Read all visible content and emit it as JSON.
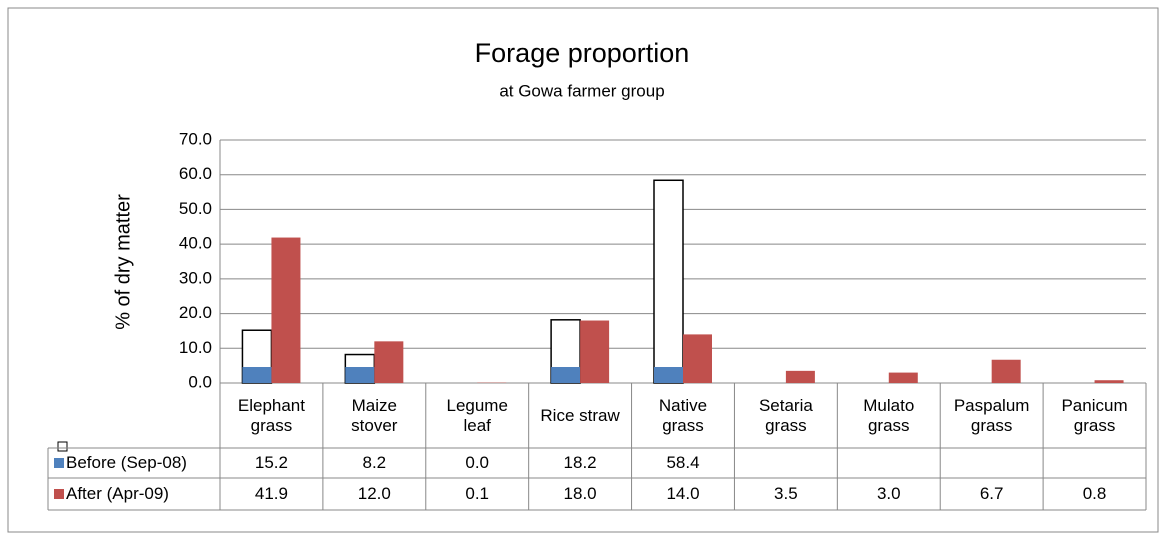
{
  "chart_data": {
    "type": "bar",
    "title": "Forage proportion",
    "subtitle": "at Gowa farmer group",
    "ylabel": "% of dry matter",
    "categories": [
      "Elephant grass",
      "Maize stover",
      "Legume leaf",
      "Rice straw",
      "Native grass",
      "Setaria grass",
      "Mulato grass",
      "Paspalum grass",
      "Panicum grass"
    ],
    "series": [
      {
        "name": "Before (Sep-08)",
        "color": "#4f81bd",
        "values": [
          15.2,
          8.2,
          0,
          18.2,
          58.4,
          null,
          null,
          null,
          null
        ],
        "value_labels": [
          "15.2",
          "8.2",
          "0.0",
          "18.2",
          "58.4",
          null,
          null,
          null,
          null
        ]
      },
      {
        "name": "After (Apr-09)",
        "color": "#c0504d",
        "values": [
          41.9,
          12,
          0.1,
          18,
          14,
          3.5,
          3,
          6.7,
          0.8
        ],
        "value_labels": [
          "41.9",
          "12.0",
          "0.1",
          "18.0",
          "14.0",
          "3.5",
          "3.0",
          "6.7",
          "0.8"
        ]
      }
    ],
    "ylim": [
      0,
      70
    ],
    "yticks": [
      {
        "value": 0,
        "label": "0.0"
      },
      {
        "value": 10,
        "label": "10.0"
      },
      {
        "value": 20,
        "label": "20.0"
      },
      {
        "value": 30,
        "label": "30.0"
      },
      {
        "value": 40,
        "label": "40.0"
      },
      {
        "value": 50,
        "label": "50.0"
      },
      {
        "value": 60,
        "label": "60.0"
      },
      {
        "value": 70,
        "label": "70.0"
      }
    ],
    "grid": true
  }
}
